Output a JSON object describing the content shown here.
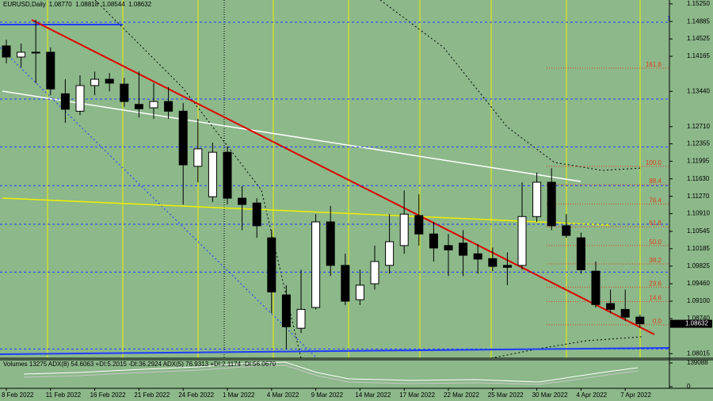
{
  "chart_data": {
    "type": "candlestick",
    "title": "EURUSD,Daily",
    "ohlc_labels": [
      "1.08770",
      "1.08818",
      "1.08544",
      "1.08632"
    ],
    "categories": [
      "8 Feb 2022",
      null,
      null,
      "11 Feb 2022",
      null,
      null,
      "16 Feb 2022",
      null,
      null,
      "21 Feb 2022",
      null,
      null,
      "24 Feb 2022",
      null,
      null,
      "1 Mar 2022",
      null,
      null,
      "4 Mar 2022",
      null,
      null,
      "9 Mar 2022",
      null,
      null,
      "14 Mar 2022",
      null,
      null,
      "17 Mar 2022",
      null,
      null,
      "22 Mar 2022",
      null,
      null,
      "25 Mar 2022",
      null,
      null,
      "30 Mar 2022",
      null,
      null,
      "4 Apr 2022",
      null,
      null,
      "7 Apr 2022",
      null
    ],
    "open": [
      1.1438,
      1.1415,
      1.1425,
      1.1425,
      1.1339,
      1.1303,
      1.1356,
      1.1369,
      1.1359,
      1.1317,
      1.131,
      1.1323,
      1.1303,
      1.1189,
      1.1126,
      1.1218,
      1.1123,
      1.1113,
      1.1041,
      1.0923,
      1.0854,
      1.0897,
      1.1074,
      1.0984,
      1.0913,
      1.0946,
      1.0984,
      1.1025,
      1.1087,
      1.1049,
      1.1025,
      1.103,
      1.1008,
      1.0998,
      1.0984,
      1.0984,
      1.1085,
      1.1156,
      1.1066,
      1.1041,
      1.0972,
      1.0905,
      1.0893,
      1.0877
    ],
    "high": [
      1.1451,
      1.1443,
      1.1492,
      1.1435,
      1.1369,
      1.1377,
      1.1385,
      1.1382,
      1.1372,
      1.1385,
      1.1361,
      1.1353,
      1.132,
      1.1287,
      1.1238,
      1.123,
      1.1148,
      1.1123,
      1.1057,
      1.0943,
      1.0975,
      1.109,
      1.1107,
      1.1008,
      1.0975,
      1.1025,
      1.109,
      1.1139,
      1.1131,
      1.1074,
      1.1049,
      1.1057,
      1.1028,
      1.1021,
      1.1011,
      1.1156,
      1.1176,
      1.1185,
      1.109,
      1.1052,
      1.0992,
      1.0934,
      1.0934,
      1.08818
    ],
    "low": [
      1.1402,
      1.1394,
      1.1361,
      1.1336,
      1.1279,
      1.1295,
      1.1336,
      1.1344,
      1.1312,
      1.129,
      1.1287,
      1.1287,
      1.111,
      1.1156,
      1.1115,
      1.111,
      1.1057,
      1.1041,
      1.0885,
      1.0811,
      1.0844,
      1.0893,
      1.0962,
      1.0902,
      1.0902,
      1.0934,
      1.0967,
      1.1008,
      1.1025,
      1.0992,
      1.0962,
      1.0962,
      1.0967,
      1.0972,
      1.0943,
      1.0975,
      1.1074,
      1.1057,
      1.1041,
      1.0967,
      1.0897,
      1.0885,
      1.0869,
      1.08544
    ],
    "close": [
      1.1415,
      1.1425,
      1.1424,
      1.1349,
      1.1307,
      1.1356,
      1.1369,
      1.1361,
      1.1323,
      1.1308,
      1.1323,
      1.1303,
      1.1192,
      1.1225,
      1.1218,
      1.1123,
      1.111,
      1.1066,
      1.0929,
      1.0857,
      1.0893,
      1.1074,
      1.0984,
      1.091,
      1.0943,
      1.0992,
      1.1033,
      1.109,
      1.1049,
      1.102,
      1.1016,
      1.1005,
      1.0997,
      1.0982,
      1.098,
      1.1085,
      1.1156,
      1.1066,
      1.1046,
      1.0975,
      1.0903,
      1.0893,
      1.0877,
      1.08632
    ],
    "up_color": "#ffffff",
    "down_color": "#000000",
    "ylim": [
      1.0792,
      1.1533
    ],
    "yticks": [
      {
        "value": 1.1525,
        "label": "1.15250"
      },
      {
        "value": 1.14885,
        "label": "1.14885"
      },
      {
        "value": 1.14525,
        "label": "1.14525"
      },
      {
        "value": 1.14165,
        "label": "1.14165"
      },
      {
        "value": 1.1344,
        "label": "1.13440"
      },
      {
        "value": 1.1271,
        "label": "1.12710"
      },
      {
        "value": 1.12355,
        "label": "1.12355"
      },
      {
        "value": 1.11995,
        "label": "1.11995"
      },
      {
        "value": 1.1163,
        "label": "1.11630"
      },
      {
        "value": 1.1127,
        "label": "1.11270"
      },
      {
        "value": 1.1091,
        "label": "1.10910"
      },
      {
        "value": 1.10545,
        "label": "1.10545"
      },
      {
        "value": 1.10185,
        "label": "1.10185"
      },
      {
        "value": 1.09825,
        "label": "1.09825"
      },
      {
        "value": 1.0946,
        "label": "1.09460"
      },
      {
        "value": 1.091,
        "label": "1.09100"
      },
      {
        "value": 1.0874,
        "label": "1.08740"
      },
      {
        "value": 1.08015,
        "label": "1.08015"
      }
    ],
    "fibonacci": [
      {
        "color": "#1e3cff",
        "levels": [
          {
            "label": "100.0",
            "value": 1.1487
          },
          {
            "label": "76.4",
            "value": 1.1328
          },
          {
            "label": "61.8",
            "value": 1.1229
          },
          {
            "label": "50.0",
            "value": 1.1149
          },
          {
            "label": "38.2",
            "value": 1.1069
          },
          {
            "label": "23.6",
            "value": 1.097
          },
          {
            "label": "0.0",
            "value": 1.0811
          }
        ]
      },
      {
        "color": "#e0401c",
        "levels": [
          {
            "label": "161.8",
            "value": 1.1392
          },
          {
            "label": "100.0",
            "value": 1.1189
          },
          {
            "label": "88.4",
            "value": 1.1151
          },
          {
            "label": "76.4",
            "value": 1.1111
          },
          {
            "label": "61.8",
            "value": 1.1064
          },
          {
            "label": "50.0",
            "value": 1.1025
          },
          {
            "label": "38.2",
            "value": 1.0987
          },
          {
            "label": "23.6",
            "value": 1.0939
          },
          {
            "label": "14.6",
            "value": 1.0909
          },
          {
            "label": "0.0",
            "value": 1.0861
          }
        ]
      }
    ],
    "indicator": {
      "label": "Volumes 13275 ADX(8) 54.6063 +DI:5.2015 -DI:36.2924 ADX(5) 76.9313 +DI:2.1174 -DI:56.0670",
      "ylim": [
        0,
        139088
      ],
      "yticks": [
        0,
        139088
      ]
    }
  }
}
